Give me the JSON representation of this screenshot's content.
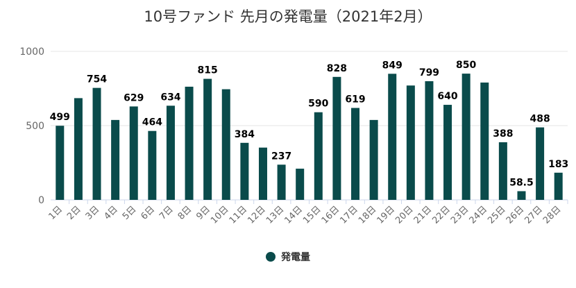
{
  "chart_data": {
    "type": "bar",
    "title": "10号ファンド 先月の発電量（2021年2月）",
    "categories": [
      "1日",
      "2日",
      "3日",
      "4日",
      "5日",
      "6日",
      "7日",
      "8日",
      "9日",
      "10日",
      "11日",
      "12日",
      "13日",
      "14日",
      "15日",
      "16日",
      "17日",
      "18日",
      "19日",
      "20日",
      "21日",
      "22日",
      "23日",
      "24日",
      "25日",
      "26日",
      "27日",
      "28日"
    ],
    "series": [
      {
        "name": "発電量",
        "color": "#0a4b4b",
        "values": [
          499,
          685,
          754,
          538,
          629,
          464,
          634,
          762,
          815,
          745,
          384,
          352,
          237,
          210,
          590,
          828,
          619,
          538,
          849,
          770,
          799,
          640,
          850,
          790,
          388,
          58.5,
          488,
          183
        ],
        "labels": [
          "499",
          null,
          "754",
          null,
          "629",
          "464",
          "634",
          null,
          "815",
          null,
          "384",
          null,
          "237",
          null,
          "590",
          "828",
          "619",
          null,
          "849",
          null,
          "799",
          "640",
          "850",
          null,
          "388",
          "58.5",
          "488",
          "183"
        ]
      }
    ],
    "y_ticks": [
      "0",
      "500",
      "1000"
    ],
    "ylim": [
      0,
      1000
    ],
    "xlabel": "",
    "ylabel": "",
    "grid": true,
    "legend": "bottom-center"
  }
}
